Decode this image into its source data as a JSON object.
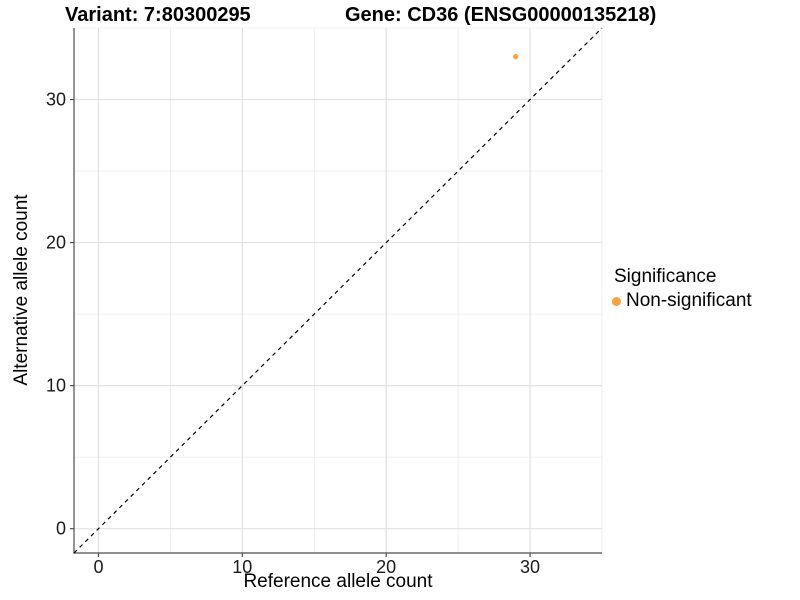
{
  "chart_data": {
    "type": "scatter",
    "titles": {
      "left": "Variant: 7:80300295",
      "right": "Gene: CD36 (ENSG00000135218)"
    },
    "xlabel": "Reference allele count",
    "ylabel": "Alternative allele count",
    "xlim": [
      -1.7,
      35
    ],
    "ylim": [
      -1.7,
      35
    ],
    "x_ticks": [
      0,
      10,
      20,
      30
    ],
    "y_ticks": [
      0,
      10,
      20,
      30
    ],
    "x_minor_ticks": [
      5,
      15,
      25,
      35
    ],
    "y_minor_ticks": [
      5,
      15,
      25,
      35
    ],
    "grid": true,
    "series": [
      {
        "name": "Non-significant",
        "color": "#F9A13B",
        "points": [
          {
            "x": 29,
            "y": 33
          }
        ]
      }
    ],
    "reference_line": {
      "kind": "identity",
      "equation": "y = x",
      "style": "dashed",
      "color": "#000000"
    },
    "legend": {
      "title": "Significance",
      "position": "right",
      "items": [
        {
          "label": "Non-significant",
          "color": "#F9A13B",
          "marker": "circle"
        }
      ]
    },
    "colors": {
      "background": "#ffffff",
      "grid_major": "#e2e2e2",
      "grid_minor": "#ebebeb",
      "axis_line": "#4d4d4d",
      "tick_mark": "#4d4d4d",
      "tick_label": "#1a1a1a"
    }
  }
}
